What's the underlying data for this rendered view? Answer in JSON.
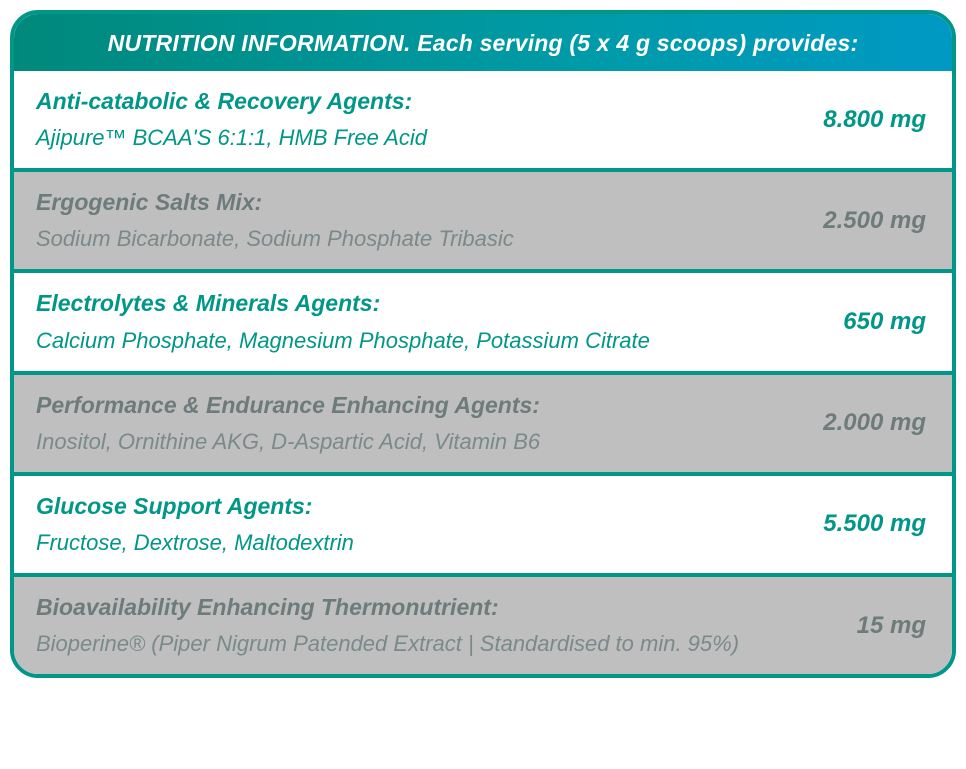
{
  "colors": {
    "border": "#009688",
    "header_gradient_from": "#00897b",
    "header_gradient_mid": "#009ba8",
    "header_gradient_to": "#0099c4",
    "header_text": "#ffffff",
    "row_white": "#ffffff",
    "row_gray": "#bfbfbf",
    "text_white_row": "#009688",
    "text_gray_title": "#6d7b7b",
    "text_gray_desc": "#7a8a8a"
  },
  "typography": {
    "header_fontsize": 23,
    "title_fontsize": 23,
    "desc_fontsize": 22,
    "amount_fontsize": 24,
    "italic": true
  },
  "header": {
    "text": "NUTRITION INFORMATION. Each serving (5 x 4 g scoops) provides:"
  },
  "rows": [
    {
      "bg": "white",
      "title": "Anti-catabolic & Recovery Agents:",
      "desc": "Ajipure™ BCAA'S 6:1:1, HMB Free Acid",
      "amount": "8.800 mg"
    },
    {
      "bg": "gray",
      "title": "Ergogenic Salts Mix:",
      "desc": "Sodium Bicarbonate, Sodium Phosphate Tribasic",
      "amount": "2.500 mg"
    },
    {
      "bg": "white",
      "title": "Electrolytes & Minerals Agents:",
      "desc": "Calcium Phosphate, Magnesium Phosphate, Potassium Citrate",
      "amount": "650 mg"
    },
    {
      "bg": "gray",
      "title": "Performance & Endurance Enhancing Agents:",
      "desc": "Inositol, Ornithine AKG, D-Aspartic Acid, Vitamin B6",
      "amount": "2.000 mg"
    },
    {
      "bg": "white",
      "title": "Glucose Support Agents:",
      "desc": "Fructose, Dextrose, Maltodextrin",
      "amount": "5.500 mg"
    },
    {
      "bg": "gray",
      "title": "Bioavailability Enhancing Thermonutrient:",
      "desc": "Bioperine® (Piper Nigrum Patended Extract | Standardised to min. 95%)",
      "amount": "15 mg"
    }
  ]
}
